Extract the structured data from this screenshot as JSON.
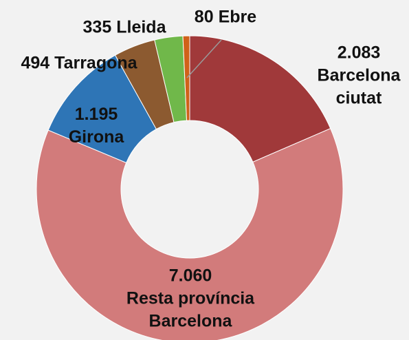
{
  "chart_data": {
    "type": "donut",
    "categories": [
      "Barcelona ciutat",
      "Resta província Barcelona",
      "Girona",
      "Tarragona",
      "Lleida",
      "Ebre"
    ],
    "values": [
      2083,
      7060,
      1195,
      494,
      335,
      80
    ],
    "value_labels": [
      "2.083",
      "7.060",
      "1.195",
      "494",
      "335",
      "80"
    ],
    "colors": [
      "#a0393a",
      "#d27b7b",
      "#2e75b6",
      "#8c5a30",
      "#70b84a",
      "#d0611a"
    ]
  }
}
